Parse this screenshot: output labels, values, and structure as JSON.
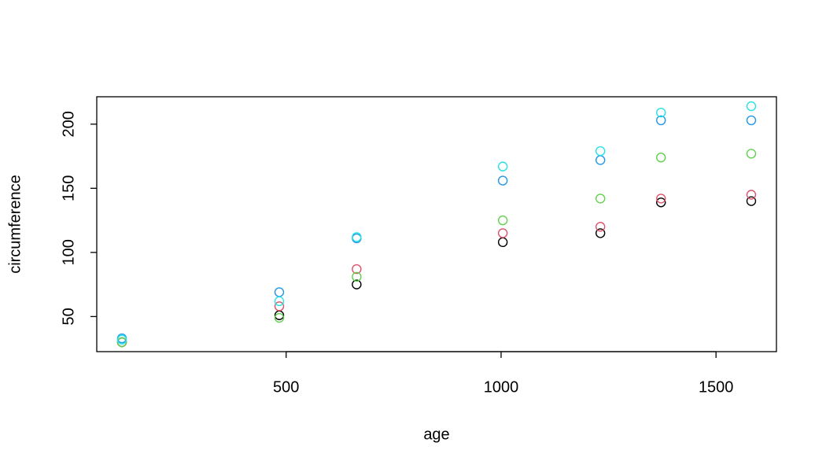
{
  "chart_data": {
    "type": "scatter",
    "x_label": "age",
    "y_label": "circumference",
    "x": [
      118,
      484,
      664,
      1004,
      1231,
      1372,
      1582
    ],
    "series": [
      {
        "color": "#000000",
        "values": [
          30,
          51,
          75,
          108,
          115,
          139,
          140
        ]
      },
      {
        "color": "#DF536B",
        "values": [
          30,
          58,
          87,
          115,
          120,
          142,
          145
        ]
      },
      {
        "color": "#61D04F",
        "values": [
          30,
          49,
          81,
          125,
          142,
          174,
          177
        ]
      },
      {
        "color": "#2297E6",
        "values": [
          33,
          69,
          111,
          156,
          172,
          203,
          203
        ]
      },
      {
        "color": "#28E2E5",
        "values": [
          32,
          62,
          112,
          167,
          179,
          209,
          214
        ]
      }
    ],
    "xlim": [
      59.44,
      1640.56
    ],
    "ylim": [
      22.64,
      221.36
    ],
    "xticks": [
      500,
      1000,
      1500
    ],
    "yticks": [
      50,
      100,
      150,
      200
    ]
  }
}
